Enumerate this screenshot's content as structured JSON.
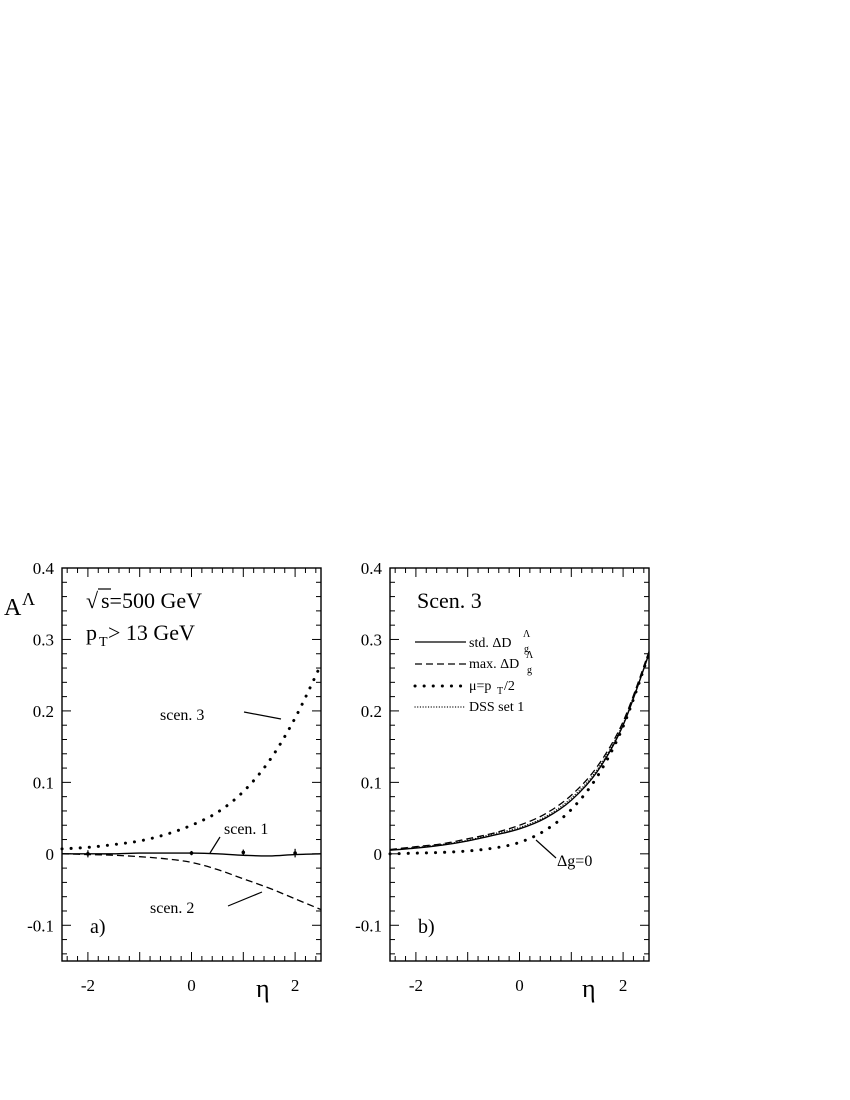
{
  "chart_data": [
    {
      "type": "line",
      "panel_label": "a)",
      "ylabel": "A",
      "ylabel_sup": "Λ",
      "xlabel": "η",
      "xlim": [
        -2.5,
        2.5
      ],
      "ylim": [
        -0.15,
        0.4
      ],
      "x_ticks": [
        -2,
        0,
        2
      ],
      "y_ticks": [
        -0.1,
        0,
        0.1,
        0.2,
        0.3,
        0.4
      ],
      "y_tick_labels": [
        "-0.1",
        "0",
        "0.1",
        "0.2",
        "0.3",
        "0.4"
      ],
      "grid": false,
      "annotations": {
        "energy_sqrt": "√",
        "energy": "s=500 GeV",
        "pt_p": "p",
        "pt_sub": "T",
        "pt_rest": "> 13 GeV"
      },
      "series": [
        {
          "name": "scen. 1",
          "style": "solid",
          "x": [
            -2.5,
            -2,
            -1.5,
            -1,
            -0.5,
            0,
            0.5,
            1,
            1.5,
            2,
            2.5
          ],
          "y": [
            0.0,
            0.0,
            0.0,
            0.001,
            0.001,
            0.001,
            0.0,
            -0.002,
            -0.003,
            -0.001,
            0.0
          ]
        },
        {
          "name": "scen. 2",
          "style": "dashed",
          "x": [
            -2.5,
            -2,
            -1.5,
            -1,
            -0.5,
            0,
            0.5,
            1,
            1.5,
            2,
            2.5
          ],
          "y": [
            0.0,
            -0.001,
            -0.002,
            -0.004,
            -0.007,
            -0.012,
            -0.022,
            -0.035,
            -0.048,
            -0.063,
            -0.078
          ]
        },
        {
          "name": "scen. 3",
          "style": "dotted",
          "x": [
            -2.5,
            -2,
            -1.5,
            -1,
            -0.5,
            0,
            0.5,
            1,
            1.5,
            2,
            2.5
          ],
          "y": [
            0.007,
            0.009,
            0.013,
            0.018,
            0.027,
            0.04,
            0.058,
            0.087,
            0.13,
            0.19,
            0.265
          ]
        }
      ],
      "data_points": {
        "x": [
          -2,
          0,
          1,
          2
        ],
        "y": [
          0.0,
          0.001,
          0.002,
          0.001
        ],
        "err": [
          0.005,
          0.003,
          0.004,
          0.006
        ]
      }
    },
    {
      "type": "line",
      "panel_label": "b)",
      "title": "Scen. 3",
      "xlabel": "η",
      "xlim": [
        -2.5,
        2.5
      ],
      "ylim": [
        -0.15,
        0.4
      ],
      "x_ticks": [
        -2,
        0,
        2
      ],
      "y_ticks": [
        -0.1,
        0,
        0.1,
        0.2,
        0.3,
        0.4
      ],
      "y_tick_labels": [
        "-0.1",
        "0",
        "0.1",
        "0.2",
        "0.3",
        "0.4"
      ],
      "grid": false,
      "legend_placement": "top-left",
      "legend": [
        {
          "text": "std. ΔD",
          "sub": "g",
          "sup": "Λ",
          "style": "solid"
        },
        {
          "text": "max. ΔD",
          "sub": "g",
          "sup": "Λ",
          "style": "dashed"
        },
        {
          "text": "μ=p",
          "sub": "T",
          "after": "/2",
          "style": "dotted"
        },
        {
          "text": "DSS set 1",
          "style": "densedot"
        }
      ],
      "annotation": "Δg=0",
      "series": [
        {
          "name": "std. ΔD_g^Λ",
          "style": "solid",
          "x": [
            -2.5,
            -2,
            -1.5,
            -1,
            -0.5,
            0,
            0.5,
            1,
            1.5,
            2,
            2.5
          ],
          "y": [
            0.005,
            0.008,
            0.012,
            0.018,
            0.026,
            0.035,
            0.05,
            0.075,
            0.115,
            0.18,
            0.28
          ]
        },
        {
          "name": "max. ΔD_g^Λ",
          "style": "dashed",
          "x": [
            -2.5,
            -2,
            -1.5,
            -1,
            -0.5,
            0,
            0.5,
            1,
            1.5,
            2,
            2.5
          ],
          "y": [
            0.006,
            0.01,
            0.014,
            0.021,
            0.029,
            0.04,
            0.056,
            0.082,
            0.122,
            0.185,
            0.283
          ]
        },
        {
          "name": "μ=p_T/2",
          "style": "dotted",
          "x": [
            -2.5,
            -2,
            -1.5,
            -1,
            -0.5,
            0,
            0.5,
            1,
            1.5,
            2,
            2.5
          ],
          "y": [
            0.0,
            0.001,
            0.002,
            0.004,
            0.008,
            0.016,
            0.033,
            0.062,
            0.108,
            0.178,
            0.28
          ]
        },
        {
          "name": "DSS set 1",
          "style": "densedot",
          "x": [
            -2.5,
            -2,
            -1.5,
            -1,
            -0.5,
            0,
            0.5,
            1,
            1.5,
            2,
            2.5
          ],
          "y": [
            0.005,
            0.009,
            0.013,
            0.019,
            0.028,
            0.037,
            0.052,
            0.078,
            0.118,
            0.182,
            0.28
          ]
        }
      ]
    }
  ]
}
